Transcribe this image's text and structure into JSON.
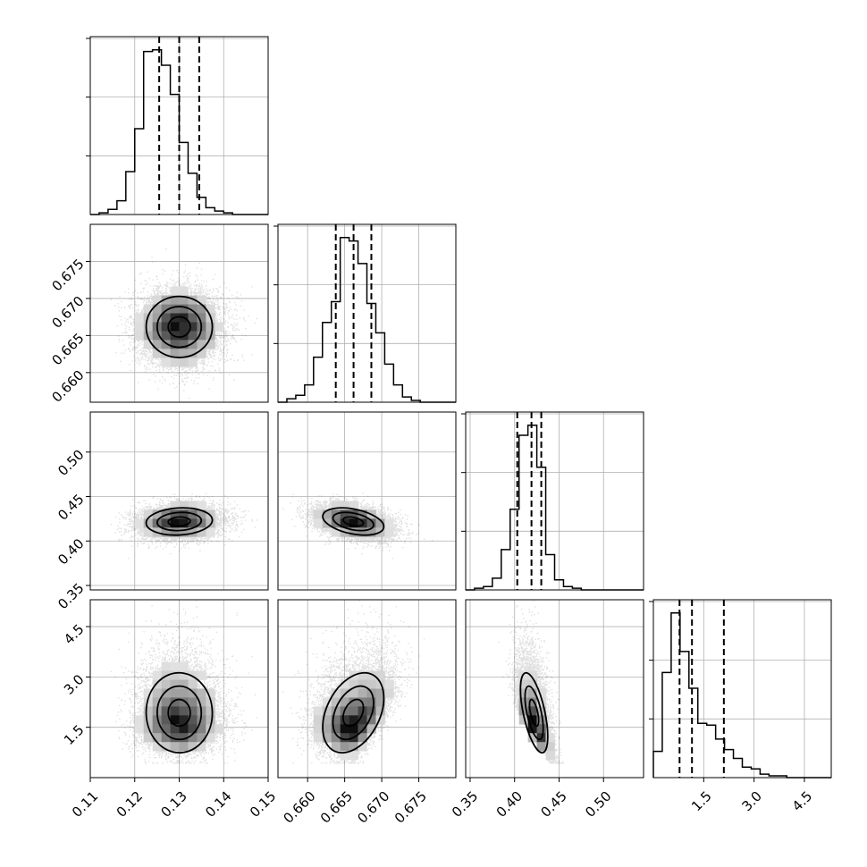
{
  "chart_data": {
    "type": "corner",
    "title": "",
    "params": [
      {
        "range": [
          0.11,
          0.15
        ],
        "ticks": [
          0.11,
          0.12,
          0.13,
          0.14,
          0.15
        ],
        "tick_labels": [
          "0.11",
          "0.12",
          "0.13",
          "0.14",
          "0.15"
        ],
        "quantiles": [
          0.1255,
          0.13,
          0.1345
        ],
        "mean": 0.13,
        "sd": 0.0045
      },
      {
        "range": [
          0.656,
          0.68
        ],
        "ticks": [
          0.66,
          0.665,
          0.67,
          0.675
        ],
        "tick_labels": [
          "0.660",
          "0.665",
          "0.670",
          "0.675"
        ],
        "quantiles": [
          0.6638,
          0.6662,
          0.6686
        ],
        "mean": 0.6662,
        "sd": 0.0025
      },
      {
        "range": [
          0.345,
          0.545
        ],
        "ticks": [
          0.35,
          0.4,
          0.45,
          0.5
        ],
        "tick_labels": [
          "0.35",
          "0.40",
          "0.45",
          "0.50"
        ],
        "quantiles": [
          0.403,
          0.419,
          0.43
        ],
        "mean": 0.419,
        "sd": 0.011
      },
      {
        "range": [
          0.0,
          5.3
        ],
        "ticks": [
          1.5,
          3.0,
          4.5
        ],
        "tick_labels": [
          "1.5",
          "3.0",
          "4.5"
        ],
        "quantiles": [
          0.78,
          1.15,
          2.1
        ],
        "mean": 1.3,
        "sd": 0.6
      }
    ],
    "histograms": [
      {
        "bin_edges_range": [
          0.11,
          0.15
        ],
        "bins": 20,
        "counts": [
          0,
          1,
          3,
          8,
          25,
          50,
          95,
          96,
          87,
          70,
          42,
          24,
          10,
          4,
          2,
          1,
          0,
          0,
          0,
          0
        ]
      },
      {
        "bin_edges_range": [
          0.656,
          0.68
        ],
        "bins": 20,
        "counts": [
          0,
          2,
          4,
          10,
          26,
          46,
          58,
          95,
          93,
          80,
          57,
          40,
          22,
          10,
          3,
          1,
          0,
          0,
          0,
          0
        ]
      },
      {
        "bin_edges_range": [
          0.345,
          0.545
        ],
        "bins": 20,
        "counts": [
          0,
          1,
          2,
          7,
          24,
          48,
          92,
          98,
          73,
          21,
          6,
          2,
          1,
          0,
          0,
          0,
          0,
          0,
          0,
          0
        ]
      },
      {
        "bin_edges_range": [
          0.0,
          5.3
        ],
        "bins": 20,
        "counts": [
          15,
          60,
          94,
          72,
          51,
          31,
          30,
          22,
          16,
          11,
          6,
          5,
          2,
          1,
          1,
          0,
          0,
          0,
          0,
          0
        ]
      }
    ],
    "scatter_mode": "point-cloud with 2D density histogram and contours",
    "grid": true,
    "legend": "none"
  }
}
